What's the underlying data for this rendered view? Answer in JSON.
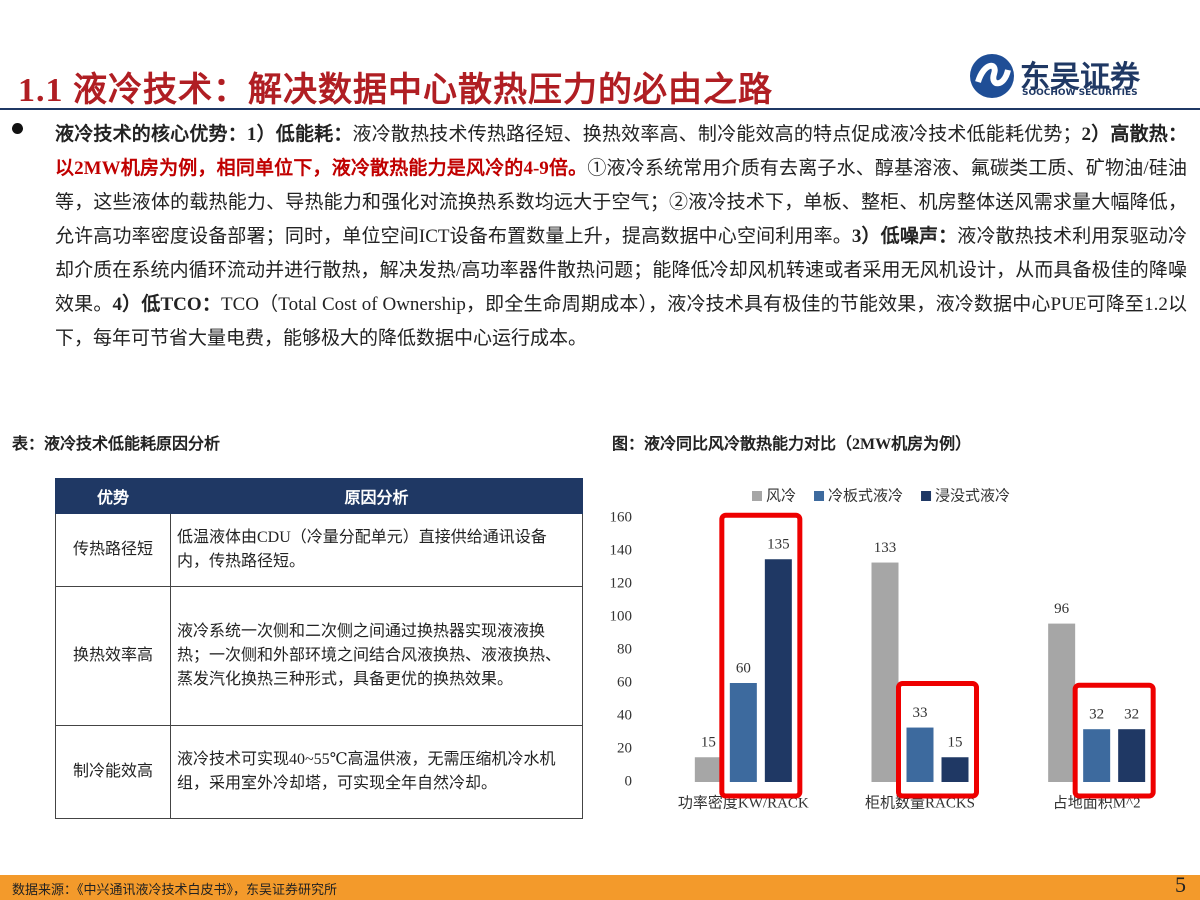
{
  "header": {
    "title": "1.1 液冷技术：解决数据中心散热压力的必由之路",
    "logo_cn": "东吴证券",
    "logo_en": "SOOCHOW SECURITIES"
  },
  "paragraph": {
    "segments": [
      "液冷技术的核心优势：",
      "1）低能耗：",
      "液冷散热技术传热路径短、换热效率高、制冷能效高的特点促成液冷技术低能耗优势；",
      "2）高散热：",
      "以2MW机房为例，相同单位下，液冷散热能力是风冷的4-9倍。",
      "①液冷系统常用介质有去离子水、醇基溶液、氟碳类工质、矿物油/硅油等，这些液体的载热能力、导热能力和强化对流换热系数均远大于空气；②液冷技术下，单板、整柜、机房整体送风需求量大幅降低，允许高功率密度设备部署；同时，单位空间ICT设备布置数量上升，提高数据中心空间利用率。",
      "3）低噪声：",
      "液冷散热技术利用泵驱动冷却介质在系统内循环流动并进行散热，解决发热/高功率器件散热问题；能降低冷却风机转速或者采用无风机设计，从而具备极佳的降噪效果。",
      "4）低TCO：",
      "TCO（Total Cost of Ownership，即全生命周期成本），液冷技术具有极佳的节能效果，液冷数据中心PUE可降至1.2以下，每年可节省大量电费，能够极大的降低数据中心运行成本。"
    ]
  },
  "table": {
    "caption": "表：液冷技术低能耗原因分析",
    "header": [
      "优势",
      "原因分析"
    ],
    "rows": [
      [
        "传热路径短",
        "低温液体由CDU（冷量分配单元）直接供给通讯设备内，传热路径短。"
      ],
      [
        "换热效率高",
        "液冷系统一次侧和二次侧之间通过换热器实现液液换热；一次侧和外部环境之间结合风液换热、液液换热、蒸发汽化换热三种形式，具备更优的换热效果。"
      ],
      [
        "制冷能效高",
        "液冷技术可实现40~55℃高温供液，无需压缩机冷水机组，采用室外冷却塔，可实现全年自然冷却。"
      ]
    ]
  },
  "chart_data": {
    "type": "bar",
    "title": "图：液冷同比风冷散热能力对比（2MW机房为例）",
    "categories": [
      "功率密度KW/RACK",
      "柜机数量RACKS",
      "占地面积M^2"
    ],
    "series": [
      {
        "name": "风冷",
        "color": "#a6a6a6",
        "values": [
          15,
          133,
          96
        ]
      },
      {
        "name": "冷板式液冷",
        "color": "#3d6a9e",
        "values": [
          60,
          33,
          32
        ]
      },
      {
        "name": "浸没式液冷",
        "color": "#1f3864",
        "values": [
          135,
          15,
          32
        ]
      }
    ],
    "ylim": [
      0,
      160
    ],
    "yticks": [
      0,
      20,
      40,
      60,
      80,
      100,
      120,
      140,
      160
    ],
    "legend": "top"
  },
  "footer": {
    "source": "数据来源：《中兴通讯液冷技术白皮书》，东吴证券研究所",
    "page": "5"
  }
}
